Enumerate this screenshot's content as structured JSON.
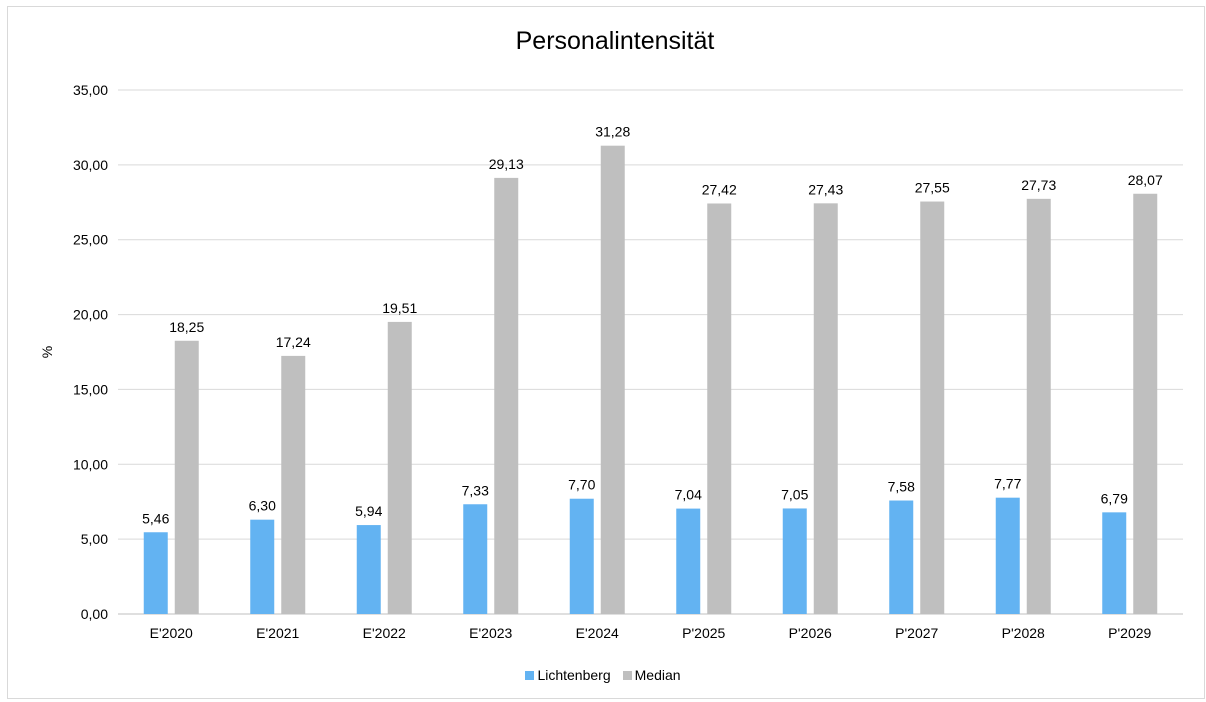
{
  "chart_data": {
    "type": "bar",
    "title": "Personalintensität",
    "xlabel": "",
    "ylabel": "%",
    "ylim": [
      0,
      35
    ],
    "y_ticks": [
      "0,00",
      "5,00",
      "10,00",
      "15,00",
      "20,00",
      "25,00",
      "30,00",
      "35,00"
    ],
    "y_tick_values": [
      0,
      5,
      10,
      15,
      20,
      25,
      30,
      35
    ],
    "grid": true,
    "legend_position": "bottom",
    "categories": [
      "E'2020",
      "E'2021",
      "E'2022",
      "E'2023",
      "E'2024",
      "P'2025",
      "P'2026",
      "P'2027",
      "P'2028",
      "P'2029"
    ],
    "series": [
      {
        "name": "Lichtenberg",
        "color": "#63b3f2",
        "values": [
          5.46,
          6.3,
          5.94,
          7.33,
          7.7,
          7.04,
          7.05,
          7.58,
          7.77,
          6.79
        ],
        "labels": [
          "5,46",
          "6,30",
          "5,94",
          "7,33",
          "7,70",
          "7,04",
          "7,05",
          "7,58",
          "7,77",
          "6,79"
        ]
      },
      {
        "name": "Median",
        "color": "#bfbfbf",
        "values": [
          18.25,
          17.24,
          19.51,
          29.13,
          31.28,
          27.42,
          27.43,
          27.55,
          27.73,
          28.07
        ],
        "labels": [
          "18,25",
          "17,24",
          "19,51",
          "29,13",
          "31,28",
          "27,42",
          "27,43",
          "27,55",
          "27,73",
          "28,07"
        ]
      }
    ]
  }
}
